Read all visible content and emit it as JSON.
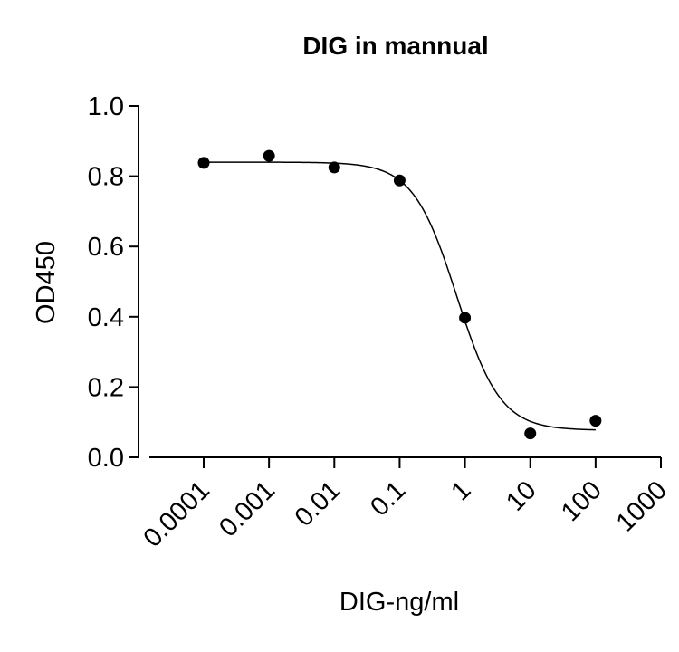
{
  "chart_data": {
    "type": "scatter",
    "title": "DIG in mannual",
    "xlabel": "DIG-ng/ml",
    "ylabel": "OD450",
    "x_scale": "log",
    "xlim": [
      0.0001,
      1000
    ],
    "ylim": [
      0,
      1.0
    ],
    "x_ticks": [
      "0.0001",
      "0.001",
      "0.01",
      "0.1",
      "1",
      "10",
      "100",
      "1000"
    ],
    "y_ticks": [
      "0.0",
      "0.2",
      "0.4",
      "0.6",
      "0.8",
      "1.0"
    ],
    "grid": false,
    "series": [
      {
        "x": [
          0.0001,
          0.001,
          0.01,
          0.1,
          1,
          10,
          100
        ],
        "y": [
          0.838,
          0.858,
          0.825,
          0.788,
          0.397,
          0.068,
          0.104
        ]
      }
    ],
    "fit_curve": {
      "model": "four-parameter logistic",
      "top": 0.84,
      "bottom": 0.077,
      "ec50": 0.75,
      "hill": 1.3
    },
    "colors": {
      "marker": "#000000",
      "line": "#000000",
      "axis": "#000000"
    }
  }
}
